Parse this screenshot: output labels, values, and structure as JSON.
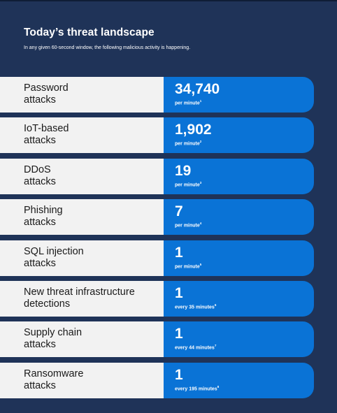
{
  "header": {
    "title": "Today’s threat landscape",
    "subtitle": "In any given 60-second window, the following malicious activity is happening."
  },
  "rows": [
    {
      "label_line1": "Password",
      "label_line2": "attacks",
      "value": "34,740",
      "unit": "per minute",
      "footnote": "1"
    },
    {
      "label_line1": "IoT-based",
      "label_line2": "attacks",
      "value": "1,902",
      "unit": "per minute",
      "footnote": "2"
    },
    {
      "label_line1": "DDoS",
      "label_line2": "attacks",
      "value": "19",
      "unit": "per minute",
      "footnote": "3"
    },
    {
      "label_line1": "Phishing",
      "label_line2": "attacks",
      "value": "7",
      "unit": "per minute",
      "footnote": "4"
    },
    {
      "label_line1": "SQL injection",
      "label_line2": "attacks",
      "value": "1",
      "unit": "per minute",
      "footnote": "5"
    },
    {
      "label_line1": "New threat infrastructure",
      "label_line2": "detections",
      "value": "1",
      "unit": "every 35 minutes",
      "footnote": "6"
    },
    {
      "label_line1": "Supply chain",
      "label_line2": "attacks",
      "value": "1",
      "unit": "every 44 minutes",
      "footnote": "7"
    },
    {
      "label_line1": "Ransomware",
      "label_line2": "attacks",
      "value": "1",
      "unit": "every 195 minutes",
      "footnote": "8"
    }
  ],
  "colors": {
    "background": "#1f3358",
    "label_bg": "#f2f2f2",
    "value_bg": "#0a73d6",
    "text_light": "#ffffff"
  }
}
